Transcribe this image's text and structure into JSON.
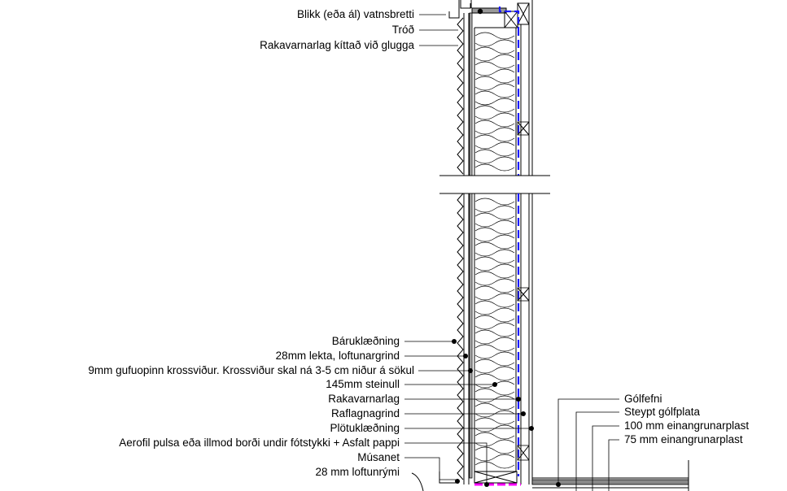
{
  "colors": {
    "line": "#000000",
    "vapour_barrier": "#1a1aff",
    "highlight": "#ff00ff",
    "background": "#ffffff"
  },
  "labels_left_top": [
    "Blikk (eða ál) vatnsbretti",
    "Tróð",
    "Rakavarnarlag kíttað við glugga"
  ],
  "labels_left_bottom": [
    "Báruklæðning",
    "28mm lekta, loftunargrind",
    "9mm gufuopinn krossviður. Krossviður skal ná 3-5 cm niður á sökul",
    "145mm steinull",
    "Rakavarnarlag",
    "Raflagnagrind",
    "Plötuklæðning",
    "Aerofil pulsa eða illmod borði undir fótstykki + Asfalt pappi",
    "Músanet",
    "28 mm loftunrými"
  ],
  "labels_right": [
    "Gólfefni",
    "Steypt gólfplata",
    "100 mm einangrunarplast",
    "75 mm einangrunarplast"
  ]
}
